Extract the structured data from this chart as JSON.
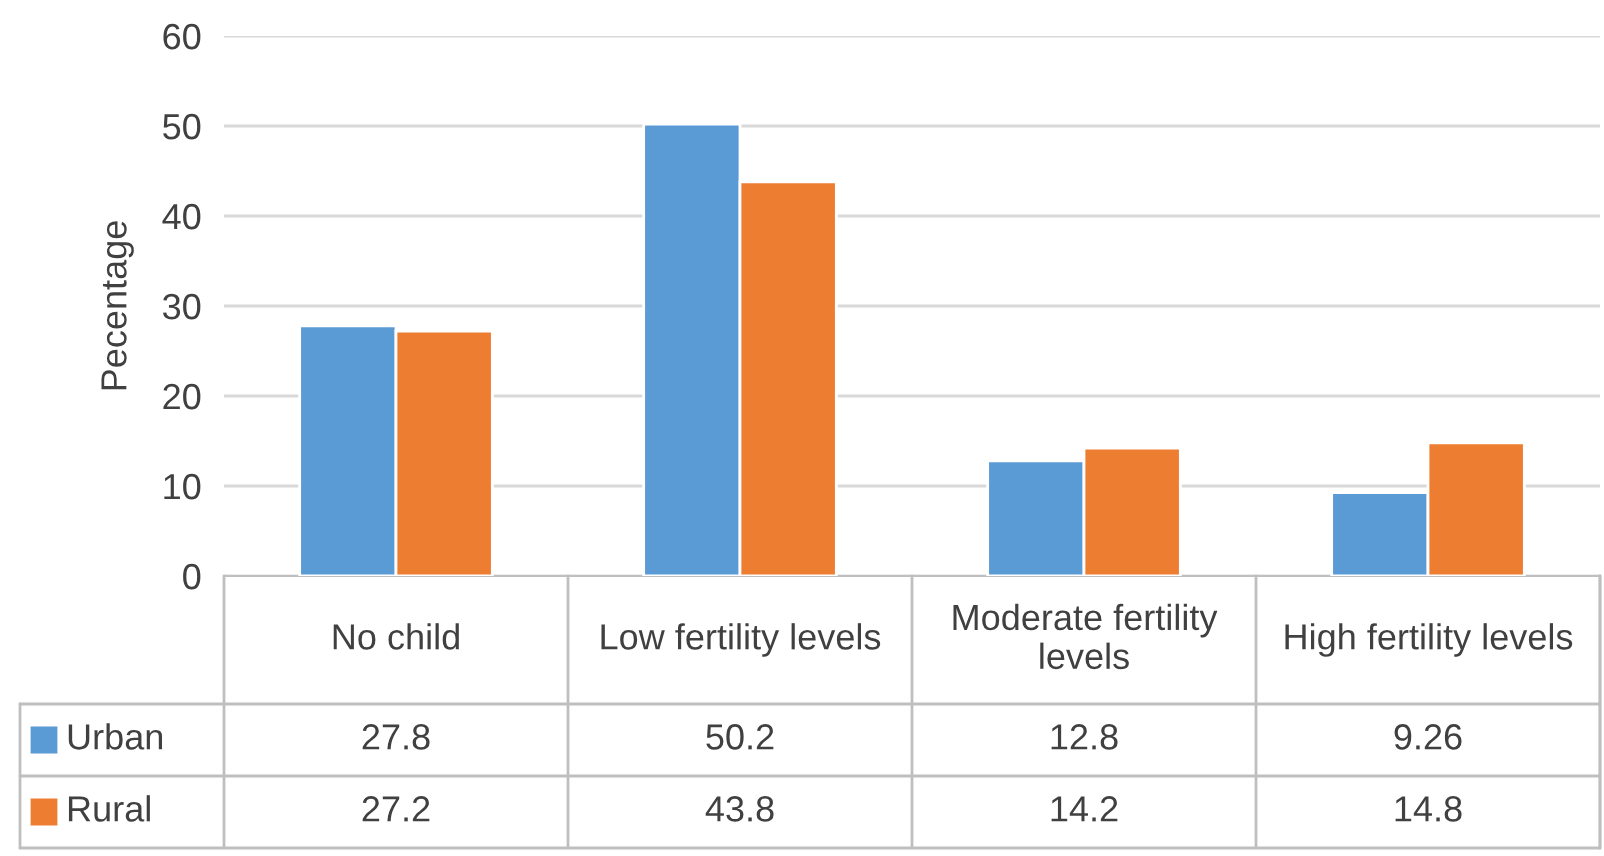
{
  "chart_data": {
    "type": "bar",
    "ylabel": "Pecentage",
    "categories": [
      "No child",
      "Low fertility levels",
      "Moderate fertility levels",
      "High fertility levels"
    ],
    "series": [
      {
        "name": "Urban",
        "color": "#5b9bd5",
        "values": [
          27.8,
          50.2,
          12.8,
          9.26
        ]
      },
      {
        "name": "Rural",
        "color": "#ed7d31",
        "values": [
          27.2,
          43.8,
          14.2,
          14.8
        ]
      }
    ],
    "ylim": [
      0,
      60
    ],
    "yticks": [
      0,
      10,
      20,
      30,
      40,
      50,
      60
    ],
    "grid": "y",
    "legend": "bottom left",
    "data_labels": true
  }
}
